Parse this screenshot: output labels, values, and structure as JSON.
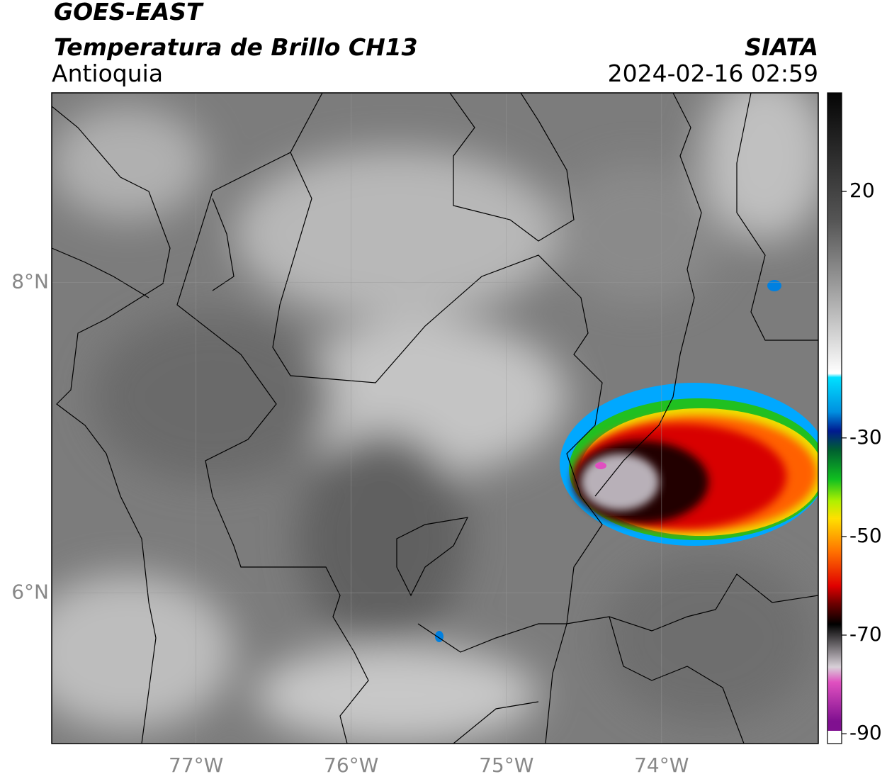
{
  "header": {
    "title": "GOES-EAST",
    "subtitle": "Temperatura de Brillo CH13",
    "region": "Antioquia",
    "source": "SIATA",
    "timestamp": "2024-02-16 02:59"
  },
  "map": {
    "xlim": [
      -77.93,
      -72.99
    ],
    "ylim": [
      5.03,
      9.22
    ],
    "xticks": [
      {
        "value": -77,
        "label": "77°W"
      },
      {
        "value": -76,
        "label": "76°W"
      },
      {
        "value": -75,
        "label": "75°W"
      },
      {
        "value": -74,
        "label": "74°W"
      }
    ],
    "yticks": [
      {
        "value": 8,
        "label": "8°N"
      },
      {
        "value": 6,
        "label": "6°N"
      }
    ],
    "grid": true
  },
  "colorbar": {
    "lim": [
      -92,
      40
    ],
    "ticks": [
      20,
      -30,
      -50,
      -70,
      -90
    ]
  }
}
